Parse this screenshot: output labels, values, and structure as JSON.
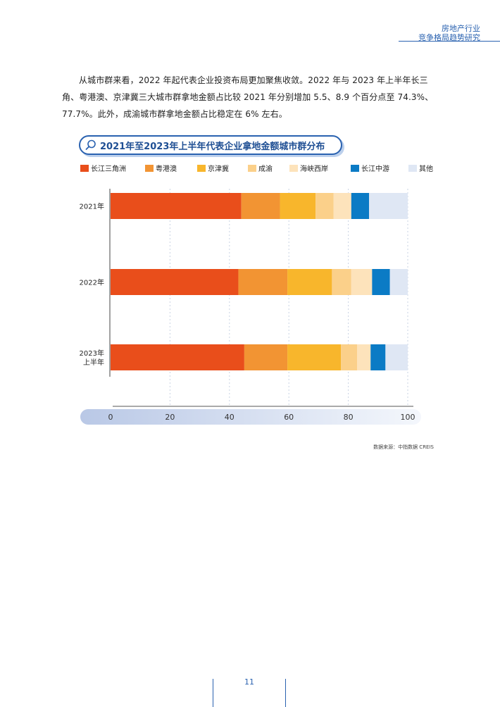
{
  "header": {
    "line1": "房地产行业",
    "line2": "竞争格局趋势研究"
  },
  "body_text": "从城市群来看，2022 年起代表企业投资布局更加聚焦收敛。2022 年与 2023 年上半年长三角、粤港澳、京津冀三大城市群拿地金额占比较 2021 年分别增加 5.5、8.9 个百分点至 74.3%、77.7%。此外，成渝城市群拿地金额占比稳定在 6% 左右。",
  "chart_data": {
    "type": "bar",
    "orientation": "horizontal",
    "stacked": true,
    "title": "2021年至2023年上半年代表企业拿地金额城市群分布",
    "categories": [
      "2021年",
      "2022年",
      "2023年\n上半年"
    ],
    "series": [
      {
        "name": "长江三角洲",
        "color": "#e94e1b",
        "values": [
          44,
          43,
          45
        ]
      },
      {
        "name": "粤港澳",
        "color": "#f29433",
        "values": [
          13,
          16.5,
          14.5
        ]
      },
      {
        "name": "京津冀",
        "color": "#f8b62c",
        "values": [
          12,
          15,
          18
        ]
      },
      {
        "name": "成渝",
        "color": "#fbd08a",
        "values": [
          6,
          6.5,
          5.5
        ]
      },
      {
        "name": "海峡西岸",
        "color": "#fde3bb",
        "values": [
          6,
          7,
          4.5
        ]
      },
      {
        "name": "长江中游",
        "color": "#0b7bc5",
        "values": [
          6,
          6,
          5
        ]
      },
      {
        "name": "其他",
        "color": "#dfe7f4",
        "values": [
          13,
          6,
          7.5
        ]
      }
    ],
    "xlim": [
      0,
      100
    ],
    "xticks": [
      0,
      20,
      40,
      60,
      80,
      100
    ],
    "grid": true,
    "legend": "top"
  },
  "source_text": "数据来源：中指数据 CREIS",
  "page_number": "11"
}
